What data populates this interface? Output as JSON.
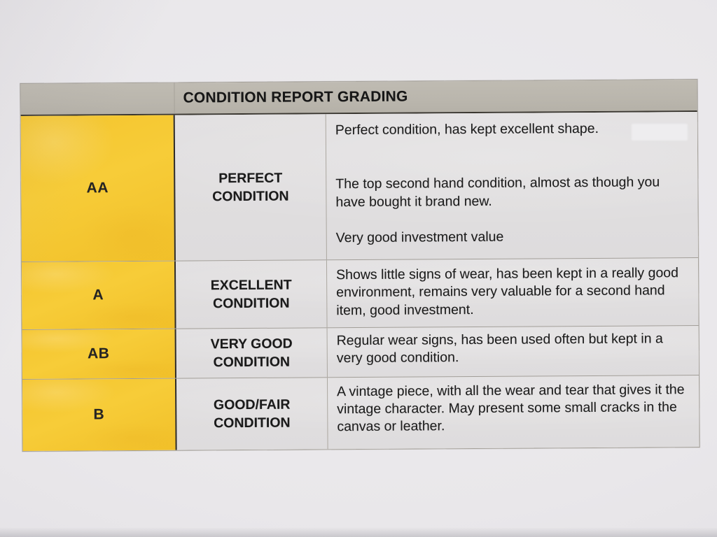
{
  "table": {
    "header": "CONDITION REPORT GRADING",
    "rows": [
      {
        "grade": "AA",
        "condition": "PERFECT CONDITION",
        "description_paragraphs": [
          "Perfect condition, has kept excellent shape.",
          "The top second hand condition, almost as though you have bought it brand new.",
          "Very good investment value"
        ]
      },
      {
        "grade": "A",
        "condition": "EXCELLENT CONDITION",
        "description_paragraphs": [
          "Shows little signs of wear, has been kept in a really good environment, remains very valuable for a second hand item, good investment."
        ]
      },
      {
        "grade": "AB",
        "condition": "VERY GOOD CONDITION",
        "description_paragraphs": [
          "Regular wear signs, has been used often but kept in a very good condition."
        ]
      },
      {
        "grade": "B",
        "condition": "GOOD/FAIR CONDITION",
        "description_paragraphs": [
          "A vintage piece, with all the wear and tear that gives it the vintage character. May present some small cracks in the canvas or leather."
        ]
      }
    ],
    "colors": {
      "grade_cell_yellow": "#F4C52E",
      "header_gray": "#BCB8AF",
      "cell_gray": "#E0DEDF",
      "photo_background": "#E8E6EA",
      "text_black": "#1E1E1E"
    }
  }
}
